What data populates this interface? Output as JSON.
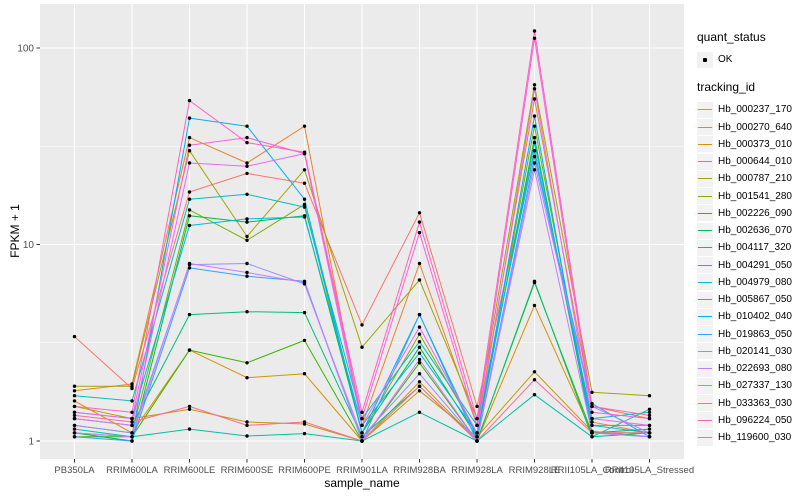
{
  "figure": {
    "bg": "#FFFFFF",
    "panel_bg": "#EBEBEB",
    "grid_color": "#FFFFFF",
    "tick_color": "#333333",
    "tick_label_color": "#4D4D4D",
    "title_color": "#000000",
    "point_color": "#000000",
    "legend_key_bg": "#F2F2F2"
  },
  "axes": {
    "x_title": "sample_name",
    "y_title": "FPKM + 1",
    "y_ticks": [
      {
        "label": "1",
        "value": 1
      },
      {
        "label": "10",
        "value": 10
      },
      {
        "label": "100",
        "value": 100
      }
    ],
    "y_minor": [
      3.1623,
      31.623
    ]
  },
  "legend": {
    "quant_title": "quant_status",
    "quant_items": [
      {
        "label": "OK",
        "marker": "black-point"
      }
    ],
    "tracking_title": "tracking_id"
  },
  "chart_data": {
    "type": "line",
    "x_type": "categorical",
    "y_scale": "log10",
    "title": "",
    "xlabel": "sample_name",
    "ylabel": "FPKM + 1",
    "ylim": [
      1,
      130
    ],
    "grid": true,
    "legend_position": "right",
    "point_marker": "small-black-point",
    "categories": [
      "PB350LA",
      "RRIM600LA",
      "RRIM600LE",
      "RRIM600SE",
      "RRIM600PE",
      "RRIM901LA",
      "RRIM928BA",
      "RRIM928LA",
      "RRIM928LE",
      "RRII105LA_Control",
      "RRII105LA_Stressed"
    ],
    "series": [
      {
        "name": "Hb_000237_170",
        "color": "#F8766D",
        "values": [
          3.4,
          1.85,
          18.5,
          23,
          20.5,
          3.9,
          14.5,
          1.5,
          30,
          1.25,
          1.1
        ]
      },
      {
        "name": "Hb_000270_640",
        "color": "#EA8331",
        "values": [
          1.8,
          1.95,
          35,
          26,
          40,
          1.2,
          8,
          1.2,
          55,
          1.5,
          1.3
        ]
      },
      {
        "name": "Hb_000373_010",
        "color": "#D89000",
        "values": [
          1.6,
          1.1,
          2.9,
          2.1,
          2.2,
          1.0,
          2.0,
          1.0,
          4.9,
          1.1,
          1.1
        ]
      },
      {
        "name": "Hb_000644_010",
        "color": "#C09B00",
        "values": [
          1.5,
          1.3,
          1.45,
          1.25,
          1.22,
          1.0,
          1.8,
          1.05,
          2.25,
          1.12,
          1.05
        ]
      },
      {
        "name": "Hb_000787_210",
        "color": "#A3A500",
        "values": [
          1.9,
          1.9,
          30,
          11,
          24,
          3.0,
          6.6,
          1.3,
          65,
          1.77,
          1.7
        ]
      },
      {
        "name": "Hb_001541_280",
        "color": "#7CAE00",
        "values": [
          1.2,
          1.1,
          15,
          10.5,
          16,
          1.1,
          3.5,
          1.1,
          40,
          1.2,
          1.2
        ]
      },
      {
        "name": "Hb_002226_090",
        "color": "#39B600",
        "values": [
          1.05,
          1.05,
          2.9,
          2.5,
          3.25,
          1.0,
          2.5,
          1.0,
          6.4,
          1.1,
          1.1
        ]
      },
      {
        "name": "Hb_002636_070",
        "color": "#00BB4E",
        "values": [
          1.1,
          1.0,
          14,
          13,
          14,
          1.1,
          3.0,
          1.05,
          35,
          1.1,
          1.15
        ]
      },
      {
        "name": "Hb_004117_320",
        "color": "#00BF7D",
        "values": [
          1.3,
          1.2,
          4.4,
          4.55,
          4.5,
          1.05,
          1.9,
          1.0,
          6.5,
          1.05,
          1.1
        ]
      },
      {
        "name": "Hb_004291_050",
        "color": "#00C1A3",
        "values": [
          1.15,
          1.05,
          1.15,
          1.06,
          1.09,
          1.0,
          1.4,
          1.0,
          1.72,
          1.05,
          1.45
        ]
      },
      {
        "name": "Hb_004979_080",
        "color": "#00BFC4",
        "values": [
          1.7,
          1.6,
          17,
          18,
          15.5,
          1.3,
          3.2,
          1.2,
          30,
          1.3,
          1.4
        ]
      },
      {
        "name": "Hb_005867_050",
        "color": "#00BAE0",
        "values": [
          1.4,
          1.3,
          12.5,
          13.5,
          13.8,
          1.2,
          2.8,
          1.1,
          33,
          1.2,
          1.1
        ]
      },
      {
        "name": "Hb_010402_040",
        "color": "#00B0F6",
        "values": [
          1.1,
          1.05,
          44,
          40,
          17,
          1.1,
          4.4,
          1.05,
          45,
          1.1,
          1.05
        ]
      },
      {
        "name": "Hb_019863_050",
        "color": "#35A2FF",
        "values": [
          1.05,
          1.0,
          7.6,
          6.9,
          6.5,
          1.0,
          4.4,
          1.0,
          28,
          1.55,
          1.05
        ]
      },
      {
        "name": "Hb_020141_030",
        "color": "#9590FF",
        "values": [
          1.2,
          1.1,
          7.9,
          8.0,
          6.3,
          1.05,
          2.2,
          1.0,
          26,
          1.5,
          1.1
        ]
      },
      {
        "name": "Hb_022693_080",
        "color": "#C77CFF",
        "values": [
          1.1,
          1.05,
          8.0,
          7.2,
          6.4,
          1.0,
          2.6,
          1.0,
          24,
          1.1,
          1.05
        ]
      },
      {
        "name": "Hb_027337_130",
        "color": "#E76BF3",
        "values": [
          1.3,
          1.2,
          26,
          25,
          29,
          1.2,
          3.8,
          1.1,
          62,
          1.3,
          1.2
        ]
      },
      {
        "name": "Hb_033363_030",
        "color": "#FA62DB",
        "values": [
          1.4,
          1.3,
          32,
          35,
          29,
          1.3,
          11.5,
          1.2,
          112,
          1.4,
          1.3
        ]
      },
      {
        "name": "Hb_096224_050",
        "color": "#FF62BC",
        "values": [
          1.5,
          1.4,
          54,
          33,
          29.5,
          1.4,
          13,
          1.3,
          122,
          1.5,
          1.35
        ]
      },
      {
        "name": "Hb_119600_030",
        "color": "#FF6A98",
        "values": [
          1.35,
          1.25,
          1.5,
          1.2,
          1.25,
          1.0,
          1.9,
          1.0,
          2.05,
          1.1,
          1.1
        ]
      }
    ]
  }
}
